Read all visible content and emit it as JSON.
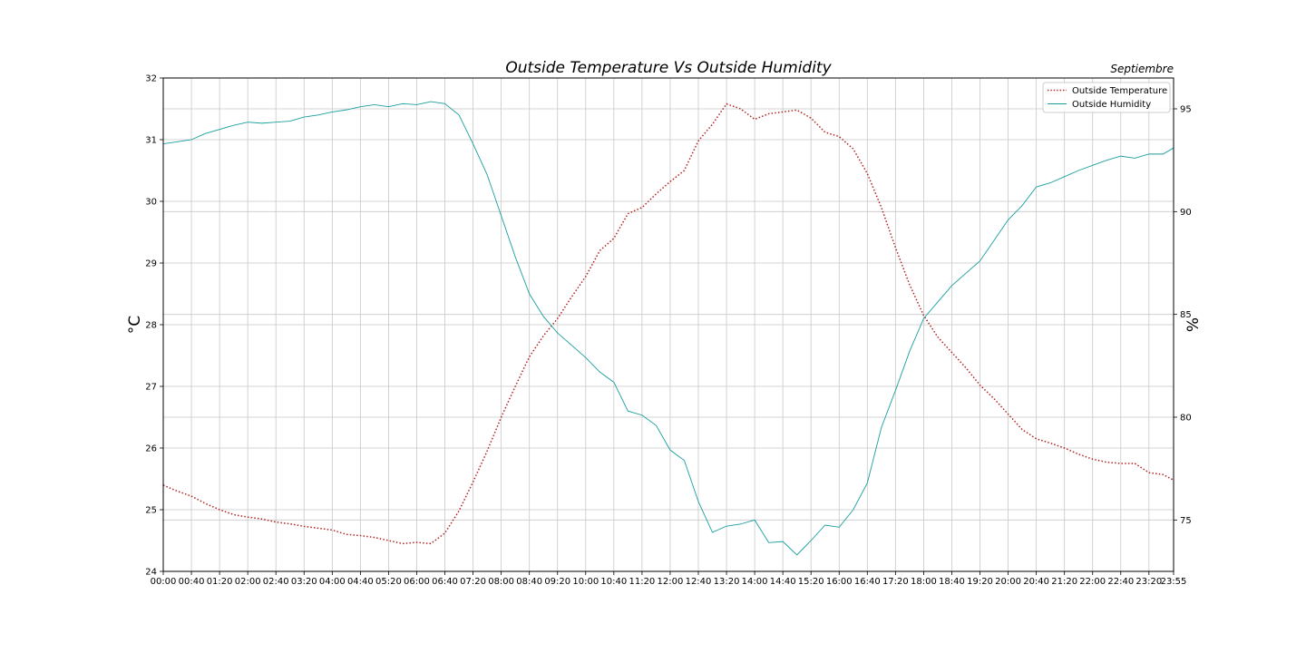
{
  "chart_data": {
    "type": "line",
    "title": "Outside Temperature Vs Outside Humidity",
    "corner_label": "Septiembre",
    "ylabel_left": "°C",
    "ylabel_right": "%",
    "ylim_left": [
      24,
      32
    ],
    "ylim_right": [
      72.5,
      96.5
    ],
    "yticks_left": [
      24,
      25,
      26,
      27,
      28,
      29,
      30,
      31,
      32
    ],
    "yticks_right": [
      75,
      80,
      85,
      90,
      95
    ],
    "xticks": [
      "00:00",
      "00:40",
      "01:20",
      "02:00",
      "02:40",
      "03:20",
      "04:00",
      "04:40",
      "05:20",
      "06:00",
      "06:40",
      "07:20",
      "08:00",
      "08:40",
      "09:20",
      "10:00",
      "10:40",
      "11:20",
      "12:00",
      "12:40",
      "13:20",
      "14:00",
      "14:40",
      "15:20",
      "16:00",
      "16:40",
      "17:20",
      "18:00",
      "18:40",
      "19:20",
      "20:00",
      "20:40",
      "21:20",
      "22:00",
      "22:40",
      "23:20",
      "23:55"
    ],
    "grid": true,
    "legend_position": "top-right",
    "colors": {
      "temperature": "#b22222",
      "humidity": "#1a9e9e"
    },
    "series": [
      {
        "name": "Outside Temperature",
        "axis": "left",
        "style": "dotted",
        "x": [
          "00:00",
          "00:20",
          "00:40",
          "01:00",
          "01:20",
          "01:40",
          "02:00",
          "02:20",
          "02:40",
          "03:00",
          "03:20",
          "03:40",
          "04:00",
          "04:20",
          "04:40",
          "05:00",
          "05:20",
          "05:40",
          "06:00",
          "06:20",
          "06:40",
          "07:00",
          "07:20",
          "07:40",
          "08:00",
          "08:20",
          "08:40",
          "09:00",
          "09:20",
          "09:40",
          "10:00",
          "10:20",
          "10:40",
          "11:00",
          "11:20",
          "11:40",
          "12:00",
          "12:20",
          "12:40",
          "13:00",
          "13:20",
          "13:40",
          "14:00",
          "14:20",
          "14:40",
          "15:00",
          "15:20",
          "15:40",
          "16:00",
          "16:20",
          "16:40",
          "17:00",
          "17:20",
          "17:40",
          "18:00",
          "18:20",
          "18:40",
          "19:00",
          "19:20",
          "19:40",
          "20:00",
          "20:20",
          "20:40",
          "21:00",
          "21:20",
          "21:40",
          "22:00",
          "22:20",
          "22:40",
          "23:00",
          "23:20",
          "23:40",
          "23:55"
        ],
        "values": [
          25.4,
          25.3,
          25.22,
          25.1,
          25.0,
          24.92,
          24.88,
          24.85,
          24.8,
          24.77,
          24.73,
          24.7,
          24.67,
          24.6,
          24.58,
          24.55,
          24.5,
          24.45,
          24.47,
          24.45,
          24.62,
          24.98,
          25.45,
          25.95,
          26.5,
          27.0,
          27.48,
          27.82,
          28.1,
          28.45,
          28.78,
          29.2,
          29.4,
          29.8,
          29.9,
          30.12,
          30.32,
          30.5,
          30.98,
          31.25,
          31.58,
          31.5,
          31.33,
          31.42,
          31.45,
          31.48,
          31.35,
          31.12,
          31.05,
          30.85,
          30.45,
          29.9,
          29.25,
          28.65,
          28.15,
          27.8,
          27.55,
          27.3,
          27.02,
          26.8,
          26.55,
          26.3,
          26.15,
          26.08,
          26.0,
          25.9,
          25.82,
          25.77,
          25.75,
          25.75,
          25.6,
          25.57,
          25.48
        ]
      },
      {
        "name": "Outside Humidity",
        "axis": "right",
        "style": "solid",
        "x": [
          "00:00",
          "00:20",
          "00:40",
          "01:00",
          "01:20",
          "01:40",
          "02:00",
          "02:20",
          "02:40",
          "03:00",
          "03:20",
          "03:40",
          "04:00",
          "04:20",
          "04:40",
          "05:00",
          "05:20",
          "05:40",
          "06:00",
          "06:20",
          "06:40",
          "07:00",
          "07:20",
          "07:40",
          "08:00",
          "08:20",
          "08:40",
          "09:00",
          "09:20",
          "09:40",
          "10:00",
          "10:20",
          "10:40",
          "11:00",
          "11:20",
          "11:40",
          "12:00",
          "12:20",
          "12:40",
          "13:00",
          "13:20",
          "13:40",
          "14:00",
          "14:20",
          "14:40",
          "15:00",
          "15:20",
          "15:40",
          "16:00",
          "16:20",
          "16:40",
          "17:00",
          "17:20",
          "17:40",
          "18:00",
          "18:20",
          "18:40",
          "19:00",
          "19:20",
          "19:40",
          "20:00",
          "20:20",
          "20:40",
          "21:00",
          "21:20",
          "21:40",
          "22:00",
          "22:20",
          "22:40",
          "23:00",
          "23:20",
          "23:40",
          "23:55"
        ],
        "values": [
          93.3,
          93.4,
          93.5,
          93.8,
          94.0,
          94.2,
          94.35,
          94.3,
          94.35,
          94.4,
          94.6,
          94.7,
          94.85,
          94.95,
          95.1,
          95.2,
          95.1,
          95.25,
          95.2,
          95.35,
          95.25,
          94.7,
          93.3,
          91.8,
          89.8,
          87.8,
          86.0,
          84.9,
          84.1,
          83.5,
          82.9,
          82.2,
          81.7,
          80.3,
          80.1,
          79.6,
          78.4,
          77.9,
          75.9,
          74.4,
          74.7,
          74.8,
          75.0,
          73.9,
          73.95,
          73.3,
          74.0,
          74.75,
          74.65,
          75.5,
          76.8,
          79.5,
          81.3,
          83.2,
          84.8,
          85.6,
          86.4,
          87.0,
          87.6,
          88.6,
          89.6,
          90.3,
          91.2,
          91.4,
          91.7,
          92.0,
          92.25,
          92.5,
          92.7,
          92.6,
          92.8,
          92.8,
          93.1
        ]
      }
    ]
  }
}
